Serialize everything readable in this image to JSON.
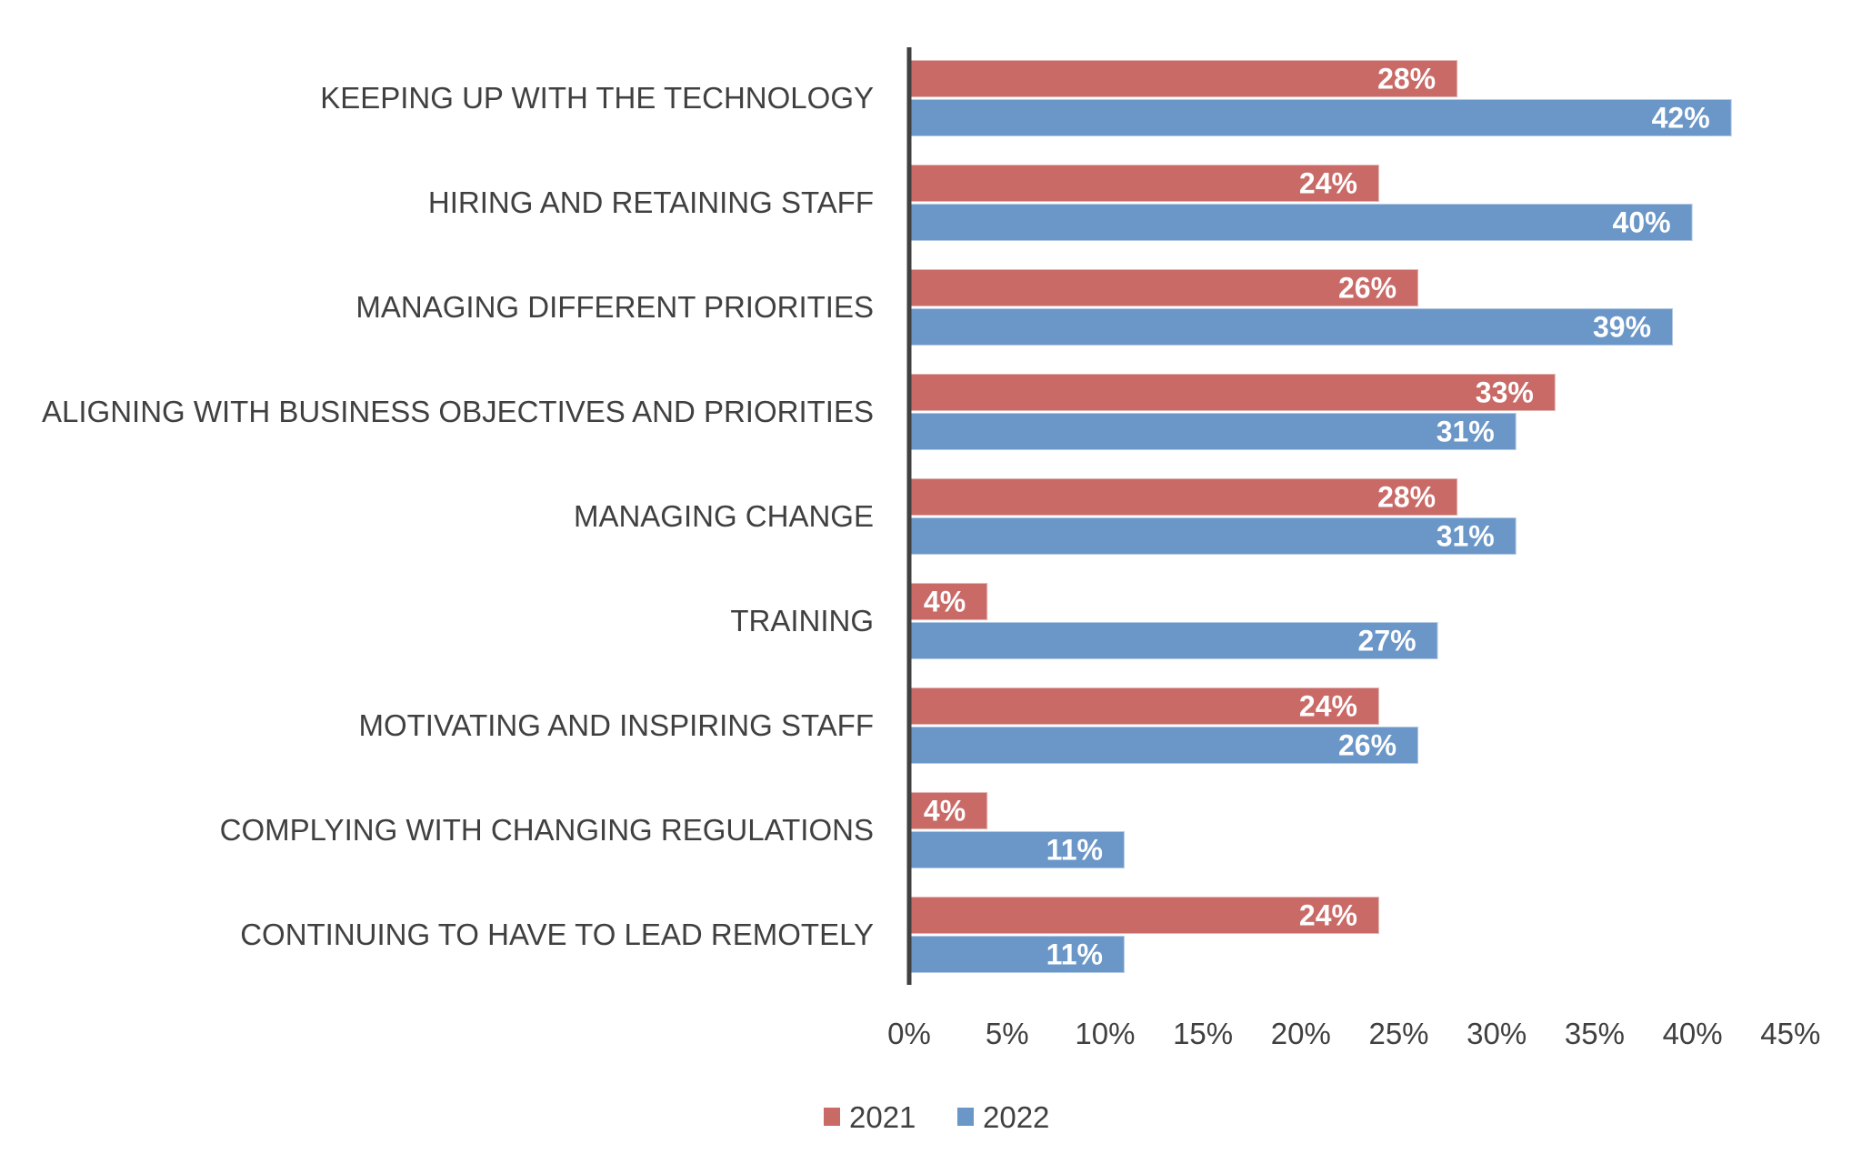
{
  "chart_data": {
    "type": "bar",
    "orientation": "horizontal",
    "title": "",
    "xlabel": "",
    "ylabel": "",
    "xlim": [
      0,
      45
    ],
    "x_ticks": [
      "0%",
      "5%",
      "10%",
      "15%",
      "20%",
      "25%",
      "30%",
      "35%",
      "40%",
      "45%"
    ],
    "grid": false,
    "legend_position": "bottom",
    "categories": [
      "KEEPING UP WITH THE TECHNOLOGY",
      "HIRING AND RETAINING STAFF",
      "MANAGING DIFFERENT PRIORITIES",
      "ALIGNING WITH BUSINESS OBJECTIVES AND PRIORITIES",
      "MANAGING CHANGE",
      "TRAINING",
      "MOTIVATING AND INSPIRING STAFF",
      "COMPLYING WITH CHANGING REGULATIONS",
      "CONTINUING TO HAVE TO LEAD REMOTELY"
    ],
    "series": [
      {
        "name": "2021",
        "color": "#C96A67",
        "values": [
          28,
          24,
          26,
          33,
          28,
          4,
          24,
          4,
          24
        ]
      },
      {
        "name": "2022",
        "color": "#6A96C8",
        "values": [
          42,
          40,
          39,
          31,
          31,
          27,
          26,
          11,
          11
        ]
      }
    ],
    "value_suffix": "%"
  }
}
